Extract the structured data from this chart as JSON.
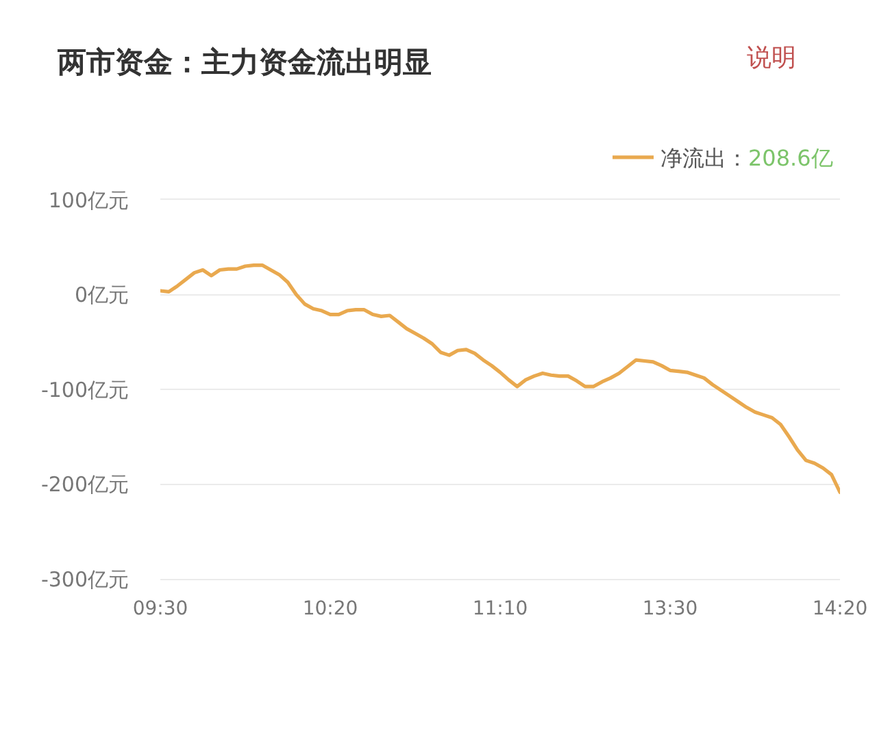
{
  "chart_data": {
    "type": "line",
    "title": "两市资金：主力资金流出明显",
    "annotations": [
      "说明",
      "208.6亿"
    ],
    "categories": [
      "09:30",
      null,
      null,
      null,
      null,
      null,
      null,
      null,
      null,
      null,
      null,
      null,
      null,
      null,
      null,
      null,
      null,
      null,
      null,
      null,
      "10:20",
      null,
      null,
      null,
      null,
      null,
      null,
      null,
      null,
      null,
      null,
      null,
      null,
      null,
      null,
      null,
      null,
      null,
      null,
      null,
      "11:10",
      null,
      null,
      null,
      null,
      null,
      null,
      null,
      null,
      null,
      null,
      null,
      null,
      null,
      null,
      null,
      null,
      null,
      null,
      null,
      "13:30",
      null,
      null,
      null,
      null,
      null,
      null,
      null,
      null,
      null,
      null,
      null,
      null,
      null,
      null,
      null,
      null,
      null,
      null,
      null,
      "14:20"
    ],
    "ylim": [
      -300,
      100
    ],
    "yticks": [
      {
        "value": 100,
        "label": "100亿元"
      },
      {
        "value": 0,
        "label": "0亿元"
      },
      {
        "value": -100,
        "label": "-100亿元"
      },
      {
        "value": -200,
        "label": "-200亿元"
      },
      {
        "value": -300,
        "label": "-300亿元"
      }
    ],
    "series": [
      {
        "name": "净流出：",
        "color": "#e9a94f",
        "values": [
          4,
          3,
          9,
          16,
          23,
          26,
          20,
          26,
          27,
          27,
          30,
          31,
          31,
          26,
          21,
          13,
          0,
          -10,
          -15,
          -17,
          -21,
          -21,
          -17,
          -16,
          -16,
          -21,
          -23,
          -22,
          -29,
          -36,
          -41,
          -46,
          -52,
          -61,
          -64,
          -59,
          -58,
          -62,
          -69,
          -75,
          -82,
          -90,
          -97,
          -90,
          -86,
          -83,
          -85,
          -86,
          -86,
          -91,
          -97,
          -97,
          -92,
          -88,
          -83,
          -76,
          -69,
          -70,
          -71,
          -75,
          -80,
          -81,
          -82,
          -85,
          -88,
          -95,
          -101,
          -107,
          -113,
          -119,
          -124,
          -127,
          -130,
          -137,
          -150,
          -164,
          -175,
          -178,
          -183,
          -190,
          -208.6
        ]
      }
    ],
    "grid": "y",
    "legend": "top right",
    "marker": "none",
    "line_style": "solid"
  }
}
